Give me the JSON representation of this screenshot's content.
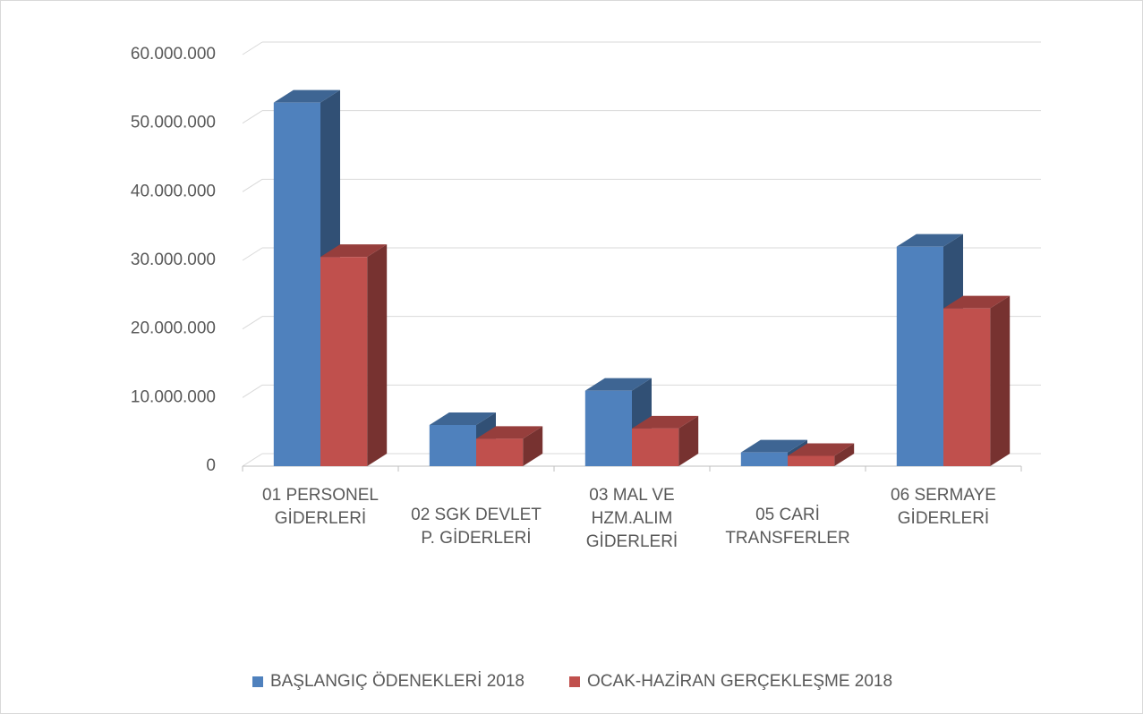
{
  "chart_data": {
    "type": "bar3d",
    "categories": [
      "01 PERSONEL GİDERLERİ",
      "02 SGK DEVLET P. GİDERLERİ",
      "03 MAL VE HZM.ALIM GİDERLERİ",
      "05 CARİ TRANSFERLER",
      "06 SERMAYE GİDERLERİ"
    ],
    "series": [
      {
        "name": "BAŞLANGIÇ ÖDENEKLERİ 2018",
        "color": "#4f81bd",
        "values": [
          53000000,
          6000000,
          11000000,
          2000000,
          32000000
        ]
      },
      {
        "name": "OCAK-HAZİRAN GERÇEKLEŞME 2018",
        "color": "#c0504d",
        "values": [
          30500000,
          4000000,
          5500000,
          1500000,
          23000000
        ]
      }
    ],
    "ylim": [
      0,
      60000000
    ],
    "yticks": [
      0,
      {
        "value": 10000000,
        "label": "10.000.000"
      },
      {
        "value": 20000000,
        "label": "20.000.000"
      },
      {
        "value": 30000000,
        "label": "30.000.000"
      },
      {
        "value": 40000000,
        "label": "40.000.000"
      },
      {
        "value": 50000000,
        "label": "50.000.000"
      },
      {
        "value": 60000000,
        "label": "60.000.000"
      }
    ],
    "grid": true,
    "legend": "bottom"
  }
}
